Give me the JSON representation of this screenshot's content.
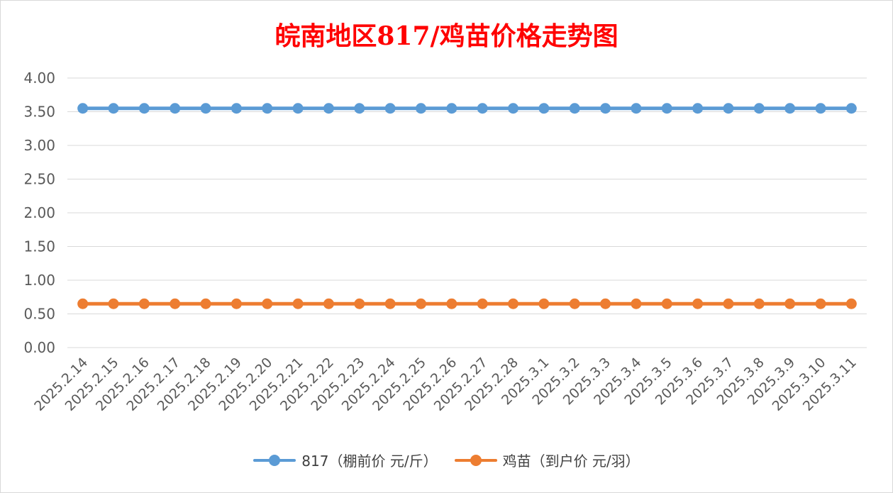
{
  "chart_data": {
    "type": "line",
    "title": "皖南地区817/鸡苗价格走势图",
    "categories": [
      "2025.2.14",
      "2025.2.15",
      "2025.2.16",
      "2025.2.17",
      "2025.2.18",
      "2025.2.19",
      "2025.2.20",
      "2025.2.21",
      "2025.2.22",
      "2025.2.23",
      "2025.2.24",
      "2025.2.25",
      "2025.2.26",
      "2025.2.27",
      "2025.2.28",
      "2025.3.1",
      "2025.3.2",
      "2025.3.3",
      "2025.3.4",
      "2025.3.5",
      "2025.3.6",
      "2025.3.7",
      "2025.3.8",
      "2025.3.9",
      "2025.3.10",
      "2025.3.11"
    ],
    "series": [
      {
        "name": "817（棚前价 元/斤）",
        "color": "#5b9bd5",
        "values": [
          3.55,
          3.55,
          3.55,
          3.55,
          3.55,
          3.55,
          3.55,
          3.55,
          3.55,
          3.55,
          3.55,
          3.55,
          3.55,
          3.55,
          3.55,
          3.55,
          3.55,
          3.55,
          3.55,
          3.55,
          3.55,
          3.55,
          3.55,
          3.55,
          3.55,
          3.55
        ]
      },
      {
        "name": "鸡苗（到户价 元/羽）",
        "color": "#ed7d31",
        "values": [
          0.65,
          0.65,
          0.65,
          0.65,
          0.65,
          0.65,
          0.65,
          0.65,
          0.65,
          0.65,
          0.65,
          0.65,
          0.65,
          0.65,
          0.65,
          0.65,
          0.65,
          0.65,
          0.65,
          0.65,
          0.65,
          0.65,
          0.65,
          0.65,
          0.65,
          0.65
        ]
      }
    ],
    "yticks": [
      "0.00",
      "0.50",
      "1.00",
      "1.50",
      "2.00",
      "2.50",
      "3.00",
      "3.50",
      "4.00"
    ],
    "ylim": [
      0,
      4
    ],
    "grid": true,
    "legend_position": "bottom"
  }
}
